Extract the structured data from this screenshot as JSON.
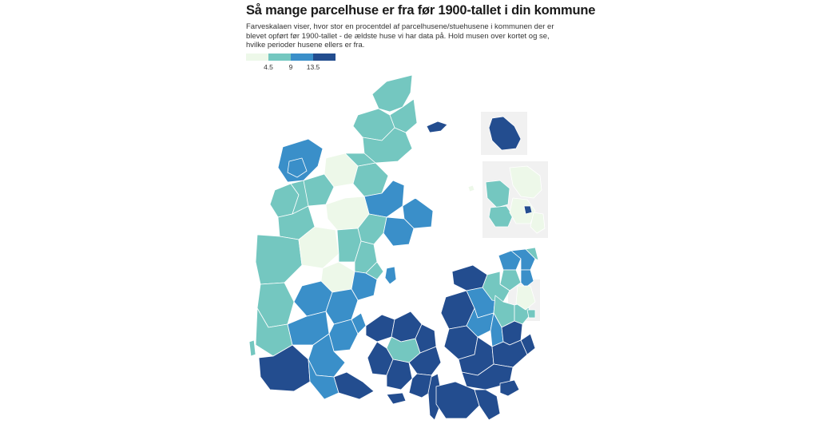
{
  "title": "Så mange parcelhuse er fra før 1900-tallet i din kommune",
  "subtitle": "Farveskalaen viser, hvor stor en procentdel af parcelhusene/stuehusene i kommunen der er blevet opført før 1900-tallet - de ældste huse vi har data på. Hold musen over kortet og se, hvilke perioder husene ellers er fra.",
  "legend": {
    "ticks": [
      "4.5",
      "9",
      "13.5"
    ],
    "colors": [
      "#edf8e9",
      "#74c7c0",
      "#3a8fc9",
      "#234d8f"
    ]
  },
  "colors": {
    "lowest": "#edf8e9",
    "low": "#74c7c0",
    "mid": "#3a8fc9",
    "high": "#234d8f",
    "inset_bg": "#f1f1f1"
  }
}
